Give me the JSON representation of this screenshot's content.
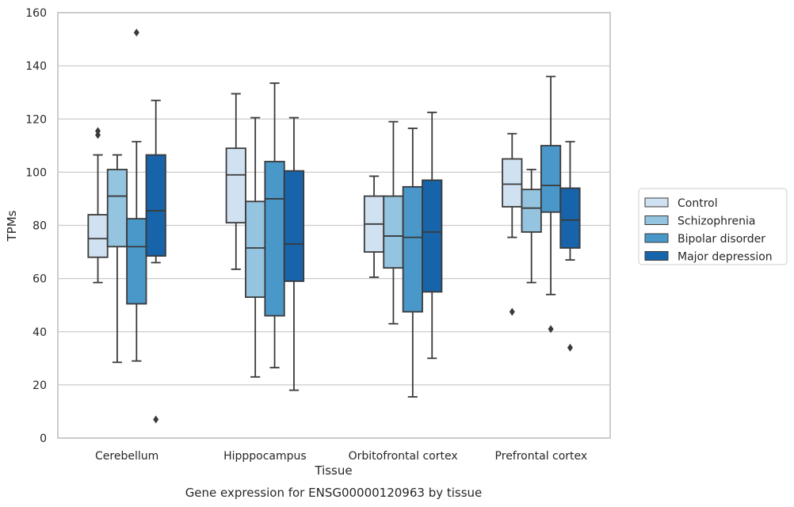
{
  "chart_data": {
    "type": "box",
    "title": "",
    "caption": "Gene expression for ENSG00000120963 by tissue",
    "xlabel": "Tissue",
    "ylabel": "TPMs",
    "ylim": [
      0,
      160
    ],
    "yticks": [
      0,
      20,
      40,
      60,
      80,
      100,
      120,
      140,
      160
    ],
    "grid": "horizontal",
    "legend_position": "right",
    "categories": [
      "Cerebellum",
      "Hipppocampus",
      "Orbitofrontal cortex",
      "Prefrontal cortex"
    ],
    "series": [
      {
        "name": "Control",
        "color": "#d0e1f2",
        "boxes": [
          {
            "whislo": 58.5,
            "q1": 68,
            "med": 75,
            "q3": 84,
            "whishi": 106.5,
            "fliers": [
              114,
              115.5
            ]
          },
          {
            "whislo": 63.5,
            "q1": 81,
            "med": 99,
            "q3": 109,
            "whishi": 129.5,
            "fliers": []
          },
          {
            "whislo": 60.5,
            "q1": 70,
            "med": 80.5,
            "q3": 91,
            "whishi": 98.5,
            "fliers": []
          },
          {
            "whislo": 75.5,
            "q1": 87,
            "med": 95.5,
            "q3": 105,
            "whishi": 114.5,
            "fliers": [
              47.5
            ]
          }
        ]
      },
      {
        "name": "Schizophrenia",
        "color": "#94c4df",
        "boxes": [
          {
            "whislo": 28.5,
            "q1": 72,
            "med": 91,
            "q3": 101,
            "whishi": 106.5,
            "fliers": []
          },
          {
            "whislo": 23,
            "q1": 53,
            "med": 71.5,
            "q3": 89,
            "whishi": 120.5,
            "fliers": []
          },
          {
            "whislo": 43,
            "q1": 64,
            "med": 76,
            "q3": 91,
            "whishi": 119,
            "fliers": []
          },
          {
            "whislo": 58.5,
            "q1": 77.5,
            "med": 86.5,
            "q3": 93.5,
            "whishi": 101,
            "fliers": []
          }
        ]
      },
      {
        "name": "Bipolar disorder",
        "color": "#4a98c9",
        "boxes": [
          {
            "whislo": 29,
            "q1": 50.5,
            "med": 72,
            "q3": 82.5,
            "whishi": 111.5,
            "fliers": [
              152.5
            ]
          },
          {
            "whislo": 26.5,
            "q1": 46,
            "med": 90,
            "q3": 104,
            "whishi": 133.5,
            "fliers": []
          },
          {
            "whislo": 15.5,
            "q1": 47.5,
            "med": 75.5,
            "q3": 94.5,
            "whishi": 116.5,
            "fliers": []
          },
          {
            "whislo": 54,
            "q1": 85,
            "med": 95,
            "q3": 110,
            "whishi": 136,
            "fliers": [
              41
            ]
          }
        ]
      },
      {
        "name": "Major depression",
        "color": "#1764ab",
        "boxes": [
          {
            "whislo": 66,
            "q1": 68.5,
            "med": 85.5,
            "q3": 106.5,
            "whishi": 127,
            "fliers": [
              7
            ]
          },
          {
            "whislo": 18,
            "q1": 59,
            "med": 73,
            "q3": 100.5,
            "whishi": 120.5,
            "fliers": []
          },
          {
            "whislo": 30,
            "q1": 55,
            "med": 77.5,
            "q3": 97,
            "whishi": 122.5,
            "fliers": []
          },
          {
            "whislo": 67,
            "q1": 71.5,
            "med": 82,
            "q3": 94,
            "whishi": 111.5,
            "fliers": [
              34
            ]
          }
        ]
      }
    ]
  }
}
